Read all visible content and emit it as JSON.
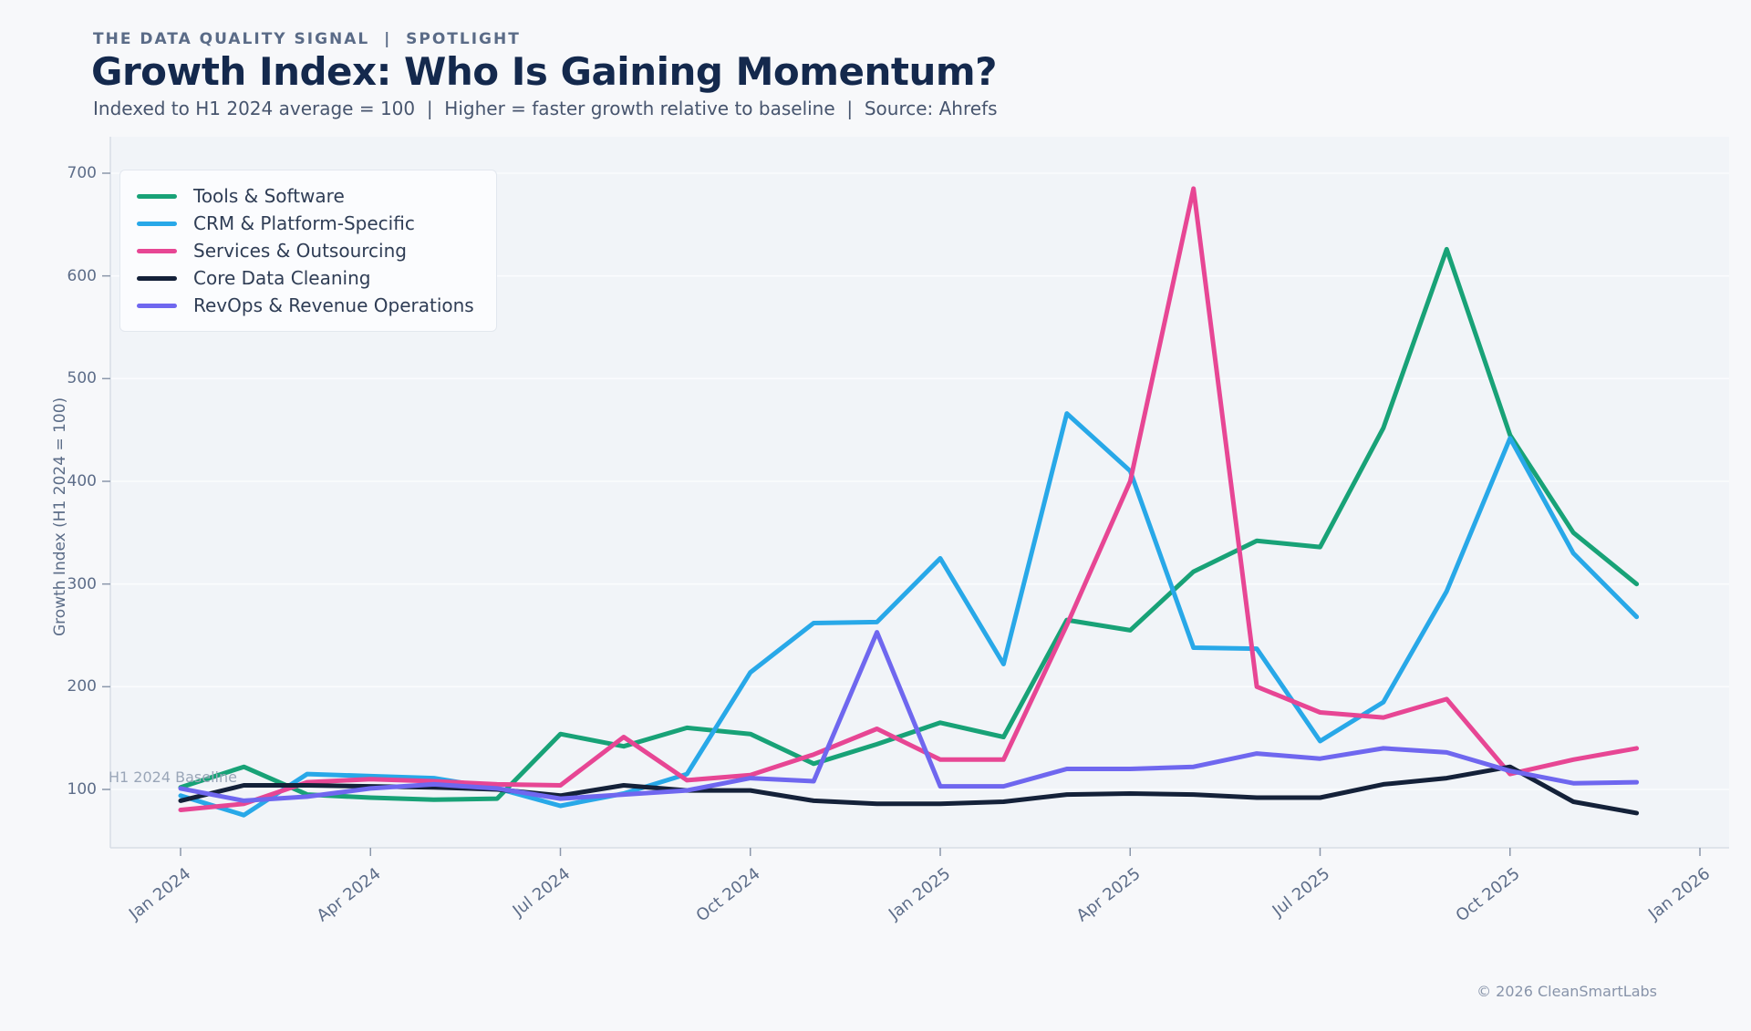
{
  "header": {
    "kicker": "THE DATA QUALITY SIGNAL  |  SPOTLIGHT",
    "title": "Growth Index: Who Is Gaining Momentum?",
    "subtitle": "Indexed to H1 2024 average = 100  |  Higher = faster growth relative to baseline  |  Source: Ahrefs"
  },
  "footer": {
    "copyright": "© 2026 CleanSmartLabs"
  },
  "chart_data": {
    "type": "line",
    "title": "Growth Index: Who Is Gaining Momentum?",
    "xlabel": "",
    "ylabel": "Growth Index (H1 2024 = 100)",
    "baseline_label": "H1 2024 Baseline",
    "baseline_value": 100,
    "grid": true,
    "legend_position": "upper left",
    "y_ticks": [
      100,
      200,
      300,
      400,
      500,
      600,
      700
    ],
    "ylim": [
      45,
      735
    ],
    "x_ticks": [
      "Jan 2024",
      "Apr 2024",
      "Jul 2024",
      "Oct 2024",
      "Jan 2025",
      "Apr 2025",
      "Jul 2025",
      "Oct 2025",
      "Jan 2026"
    ],
    "x": [
      "Jan 2024",
      "Feb 2024",
      "Mar 2024",
      "Apr 2024",
      "May 2024",
      "Jun 2024",
      "Jul 2024",
      "Aug 2024",
      "Sep 2024",
      "Oct 2024",
      "Nov 2024",
      "Dec 2024",
      "Jan 2025",
      "Feb 2025",
      "Mar 2025",
      "Apr 2025",
      "May 2025",
      "Jun 2025",
      "Jul 2025",
      "Aug 2025",
      "Sep 2025",
      "Oct 2025",
      "Nov 2025",
      "Dec 2025"
    ],
    "series": [
      {
        "name": "Tools & Software",
        "color": "#18a277",
        "values": [
          102,
          122,
          95,
          92,
          90,
          91,
          154,
          142,
          160,
          154,
          125,
          144,
          165,
          151,
          265,
          255,
          312,
          342,
          336,
          452,
          626,
          445,
          350,
          300
        ]
      },
      {
        "name": "CRM & Platform-Specific",
        "color": "#28a8e8",
        "values": [
          94,
          75,
          115,
          113,
          111,
          101,
          84,
          96,
          115,
          214,
          262,
          263,
          325,
          222,
          466,
          410,
          238,
          237,
          147,
          185,
          293,
          442,
          330,
          268
        ]
      },
      {
        "name": "Services & Outsourcing",
        "color": "#e74694",
        "values": [
          80,
          86,
          107,
          110,
          108,
          105,
          104,
          151,
          109,
          114,
          134,
          159,
          129,
          129,
          260,
          400,
          685,
          200,
          175,
          170,
          188,
          115,
          129,
          140
        ]
      },
      {
        "name": "Core Data Cleaning",
        "color": "#142139",
        "values": [
          89,
          104,
          104,
          103,
          102,
          100,
          94,
          104,
          99,
          99,
          89,
          86,
          86,
          88,
          95,
          96,
          95,
          92,
          92,
          105,
          111,
          122,
          88,
          77
        ]
      },
      {
        "name": "RevOps & Revenue Operations",
        "color": "#6f67ef",
        "values": [
          101,
          89,
          93,
          101,
          105,
          101,
          91,
          95,
          99,
          111,
          108,
          253,
          103,
          103,
          120,
          120,
          122,
          135,
          130,
          140,
          136,
          118,
          106,
          107
        ]
      }
    ]
  }
}
